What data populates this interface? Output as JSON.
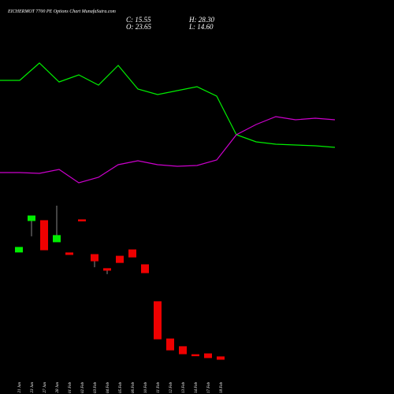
{
  "header": {
    "title": "EICHERMOT 7700 PE Options Chart MunafaSutra.com",
    "close": "C: 15.55",
    "high": "H: 28.30",
    "open": "O: 23.65",
    "low": "L: 14.60"
  },
  "chart_data": [
    {
      "type": "line",
      "ylim": [
        0,
        220
      ],
      "series": [
        {
          "color": "#00ee00",
          "values": [
            158,
            158,
            180,
            156,
            165,
            152,
            177,
            147,
            140,
            145,
            150,
            138,
            89,
            80,
            77,
            76,
            75,
            73
          ]
        },
        {
          "color": "#cc00cc",
          "values": [
            41,
            41,
            40,
            45,
            28,
            35,
            51,
            56,
            51,
            49,
            50,
            57,
            89,
            102,
            112,
            108,
            110,
            108
          ]
        }
      ]
    },
    {
      "type": "candlestick",
      "ylim": [
        0,
        600
      ],
      "up_color": "#00ee00",
      "down_color": "#ee0000",
      "categories": [
        "21 Jan",
        "23 Jan",
        "27 Jan",
        "28 Jan",
        "01 Feb",
        "02 Feb",
        "03 Feb",
        "04 Feb",
        "05 Feb",
        "06 Feb",
        "10 Feb",
        "11 Feb",
        "12 Feb",
        "13 Feb",
        "14 Feb",
        "17 Feb",
        "18 Feb"
      ],
      "open": [
        429,
        543,
        543,
        466,
        426,
        546,
        420,
        369,
        414,
        437,
        383,
        249,
        114,
        86,
        57,
        60,
        49
      ],
      "high": [
        446,
        560,
        543,
        597,
        426,
        546,
        420,
        369,
        414,
        437,
        383,
        249,
        114,
        86,
        57,
        60,
        49
      ],
      "low": [
        429,
        486,
        437,
        466,
        420,
        543,
        374,
        349,
        391,
        411,
        354,
        114,
        74,
        60,
        54,
        46,
        40
      ],
      "close": [
        446,
        560,
        437,
        489,
        420,
        543,
        397,
        363,
        391,
        411,
        354,
        114,
        74,
        60,
        54,
        46,
        40
      ]
    }
  ]
}
